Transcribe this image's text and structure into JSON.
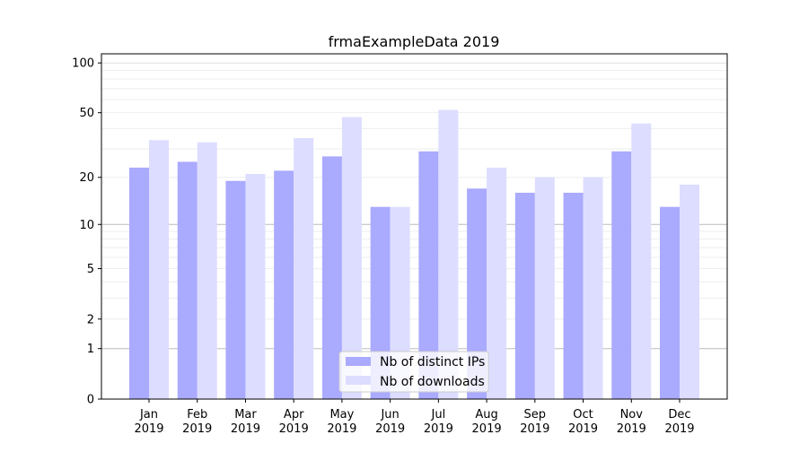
{
  "chart_data": {
    "type": "bar",
    "title": "frmaExampleData 2019",
    "xlabel": "",
    "ylabel": "",
    "yscale": "log(1+x)",
    "ylim": [
      0,
      110
    ],
    "yticks": [
      0,
      1,
      2,
      5,
      10,
      20,
      50,
      100
    ],
    "grid": "horizontal",
    "legend_position": "bottom-center",
    "categories": [
      "Jan\n2019",
      "Feb\n2019",
      "Mar\n2019",
      "Apr\n2019",
      "May\n2019",
      "Jun\n2019",
      "Jul\n2019",
      "Aug\n2019",
      "Sep\n2019",
      "Oct\n2019",
      "Nov\n2019",
      "Dec\n2019"
    ],
    "series": [
      {
        "name": "Nb of distinct IPs",
        "color": "#aaaaff",
        "values": [
          23,
          25,
          19,
          22,
          27,
          13,
          29,
          17,
          16,
          16,
          29,
          13
        ]
      },
      {
        "name": "Nb of downloads",
        "color": "#ddddff",
        "values": [
          34,
          33,
          21,
          35,
          47,
          13,
          52,
          23,
          20,
          20,
          43,
          18
        ]
      }
    ]
  }
}
